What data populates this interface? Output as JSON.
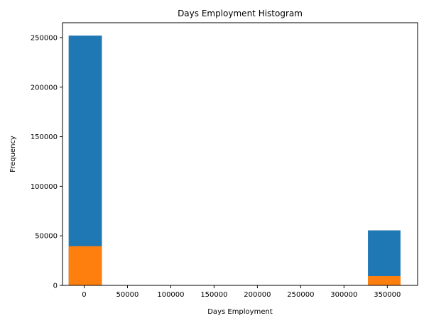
{
  "chart_data": {
    "type": "bar",
    "title": "Days Employment Histogram",
    "xlabel": "Days Employment",
    "ylabel": "Frequency",
    "xlim": [
      -25000,
      385000
    ],
    "ylim": [
      0,
      265000
    ],
    "xticks": [
      0,
      50000,
      100000,
      150000,
      200000,
      250000,
      300000,
      350000
    ],
    "yticks": [
      0,
      50000,
      100000,
      150000,
      200000,
      250000
    ],
    "grid": false,
    "legend": "none",
    "series": [
      {
        "color": "#1f77b4",
        "bins": [
          {
            "x0": -17912,
            "x1": 20485,
            "value": 252000
          },
          {
            "x0": 327663,
            "x1": 365243,
            "value": 55500
          }
        ]
      },
      {
        "color": "#ff7f0e",
        "bins": [
          {
            "x0": -17912,
            "x1": 20485,
            "value": 39500
          },
          {
            "x0": 327663,
            "x1": 365243,
            "value": 9300
          }
        ]
      }
    ]
  }
}
